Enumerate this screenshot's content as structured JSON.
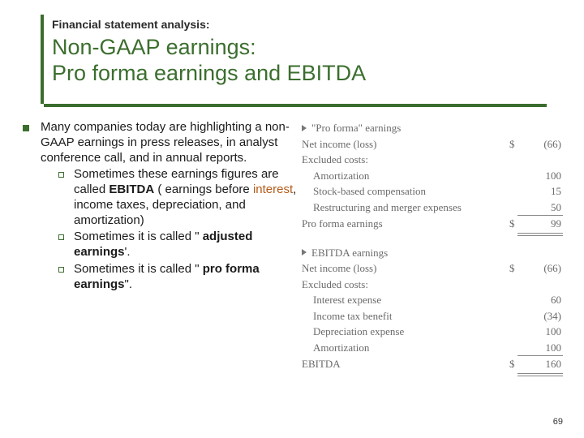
{
  "colors": {
    "accent": "#3b6e2e",
    "interest": "#b45a18",
    "figure_text": "#6a6a6a"
  },
  "pretitle": "Financial statement analysis:",
  "title_l1": "Non-GAAP earnings:",
  "title_l2": "Pro forma earnings and EBITDA",
  "bullets": {
    "main": "Many companies today are highlighting a non-GAAP earnings in press releases, in analyst conference call, and in annual reports.",
    "sub1_a": " Sometimes these earnings figures are called ",
    "sub1_bold": "EBITDA",
    "sub1_b": " ( earnings before ",
    "sub1_interest": "interest",
    "sub1_c": ", income taxes, depreciation, and amortization)",
    "sub2_a": " Sometimes it is called \" ",
    "sub2_bold": "adjusted earnings",
    "sub2_b": "'.",
    "sub3_a": " Sometimes it is called \" ",
    "sub3_bold": "pro forma earnings",
    "sub3_b": "\"."
  },
  "figure": {
    "section1": {
      "head": "\"Pro forma\" earnings",
      "rows": [
        {
          "label": "Net income (loss)",
          "dollar": "$",
          "value": "(66)",
          "style": "none"
        },
        {
          "label": "Excluded costs:",
          "dollar": "",
          "value": "",
          "style": "none"
        },
        {
          "label": "Amortization",
          "dollar": "",
          "value": "100",
          "style": "none",
          "indent": true
        },
        {
          "label": "Stock-based compensation",
          "dollar": "",
          "value": "15",
          "style": "none",
          "indent": true
        },
        {
          "label": "Restructuring and merger expenses",
          "dollar": "",
          "value": "50",
          "style": "single",
          "indent": true
        },
        {
          "label": "Pro forma earnings",
          "dollar": "$",
          "value": "99",
          "style": "double"
        }
      ]
    },
    "section2": {
      "head": "EBITDA earnings",
      "rows": [
        {
          "label": "Net income (loss)",
          "dollar": "$",
          "value": "(66)",
          "style": "none"
        },
        {
          "label": "Excluded costs:",
          "dollar": "",
          "value": "",
          "style": "none"
        },
        {
          "label": "Interest expense",
          "dollar": "",
          "value": "60",
          "style": "none",
          "indent": true
        },
        {
          "label": "Income tax benefit",
          "dollar": "",
          "value": "(34)",
          "style": "none",
          "indent": true
        },
        {
          "label": "Depreciation expense",
          "dollar": "",
          "value": "100",
          "style": "none",
          "indent": true
        },
        {
          "label": "Amortization",
          "dollar": "",
          "value": "100",
          "style": "single",
          "indent": true
        },
        {
          "label": "EBITDA",
          "dollar": "$",
          "value": "160",
          "style": "double"
        }
      ]
    }
  },
  "pagenum": "69"
}
